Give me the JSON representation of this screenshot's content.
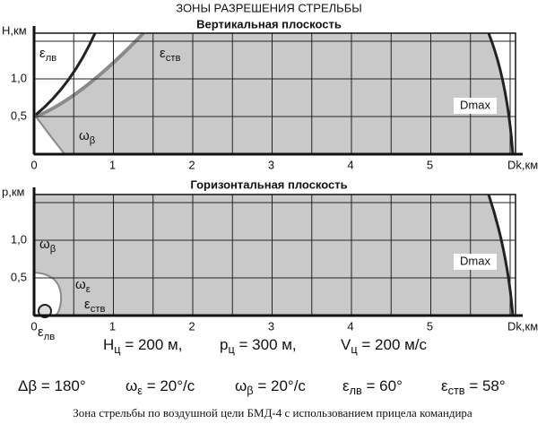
{
  "title": "ЗОНЫ РАЗРЕШЕНИЯ СТРЕЛЬБЫ",
  "charts": [
    {
      "subtitle": "Вертикальная плоскость",
      "y_axis_label": "H,км",
      "x_axis_label": "Dk,км",
      "origin": "0",
      "yticks": [
        "0,5",
        "1,0"
      ],
      "xticks": [
        "1",
        "2",
        "3",
        "4",
        "5"
      ],
      "labels": [
        {
          "symbol": "ε",
          "sub": "лв"
        },
        {
          "symbol": "ε",
          "sub": "ств"
        },
        {
          "symbol": "ω",
          "sub": "β"
        }
      ],
      "range_label": "Dmax"
    },
    {
      "subtitle": "Горизонтальная плоскость",
      "y_axis_label": "р,км",
      "x_axis_label": "Dk,км",
      "origin": "0",
      "yticks": [
        "0,5",
        "1,0"
      ],
      "xticks": [
        "1",
        "2",
        "3",
        "4",
        "5"
      ],
      "labels": [
        {
          "symbol": "ω",
          "sub": "β"
        },
        {
          "symbol": "ω",
          "sub": "ε"
        },
        {
          "symbol": "ε",
          "sub": "ств"
        },
        {
          "symbol": "ε",
          "sub": "лв"
        }
      ],
      "range_label": "Dmax"
    }
  ],
  "parameters": [
    [
      {
        "main": "H",
        "sub": "ц",
        "rest": " = 200 м,"
      },
      {
        "main": "р",
        "sub": "ц",
        "rest": " = 300 м,"
      },
      {
        "main": "V",
        "sub": "ц",
        "rest": " = 200 м/с"
      }
    ],
    [
      {
        "main": "Δβ",
        "sub": "",
        "rest": " = 180°"
      },
      {
        "main": "ω",
        "sub": "ε",
        "rest": " = 20°/с"
      },
      {
        "main": "ω",
        "sub": "β",
        "rest": " = 20°/с"
      },
      {
        "main": "ε",
        "sub": "лв",
        "rest": " = 60°"
      },
      {
        "main": "ε",
        "sub": "ств",
        "rest": " = 58°"
      }
    ]
  ],
  "caption": "Зона стрельбы по воздушной цели БМД-4 с использованием прицела командира"
}
